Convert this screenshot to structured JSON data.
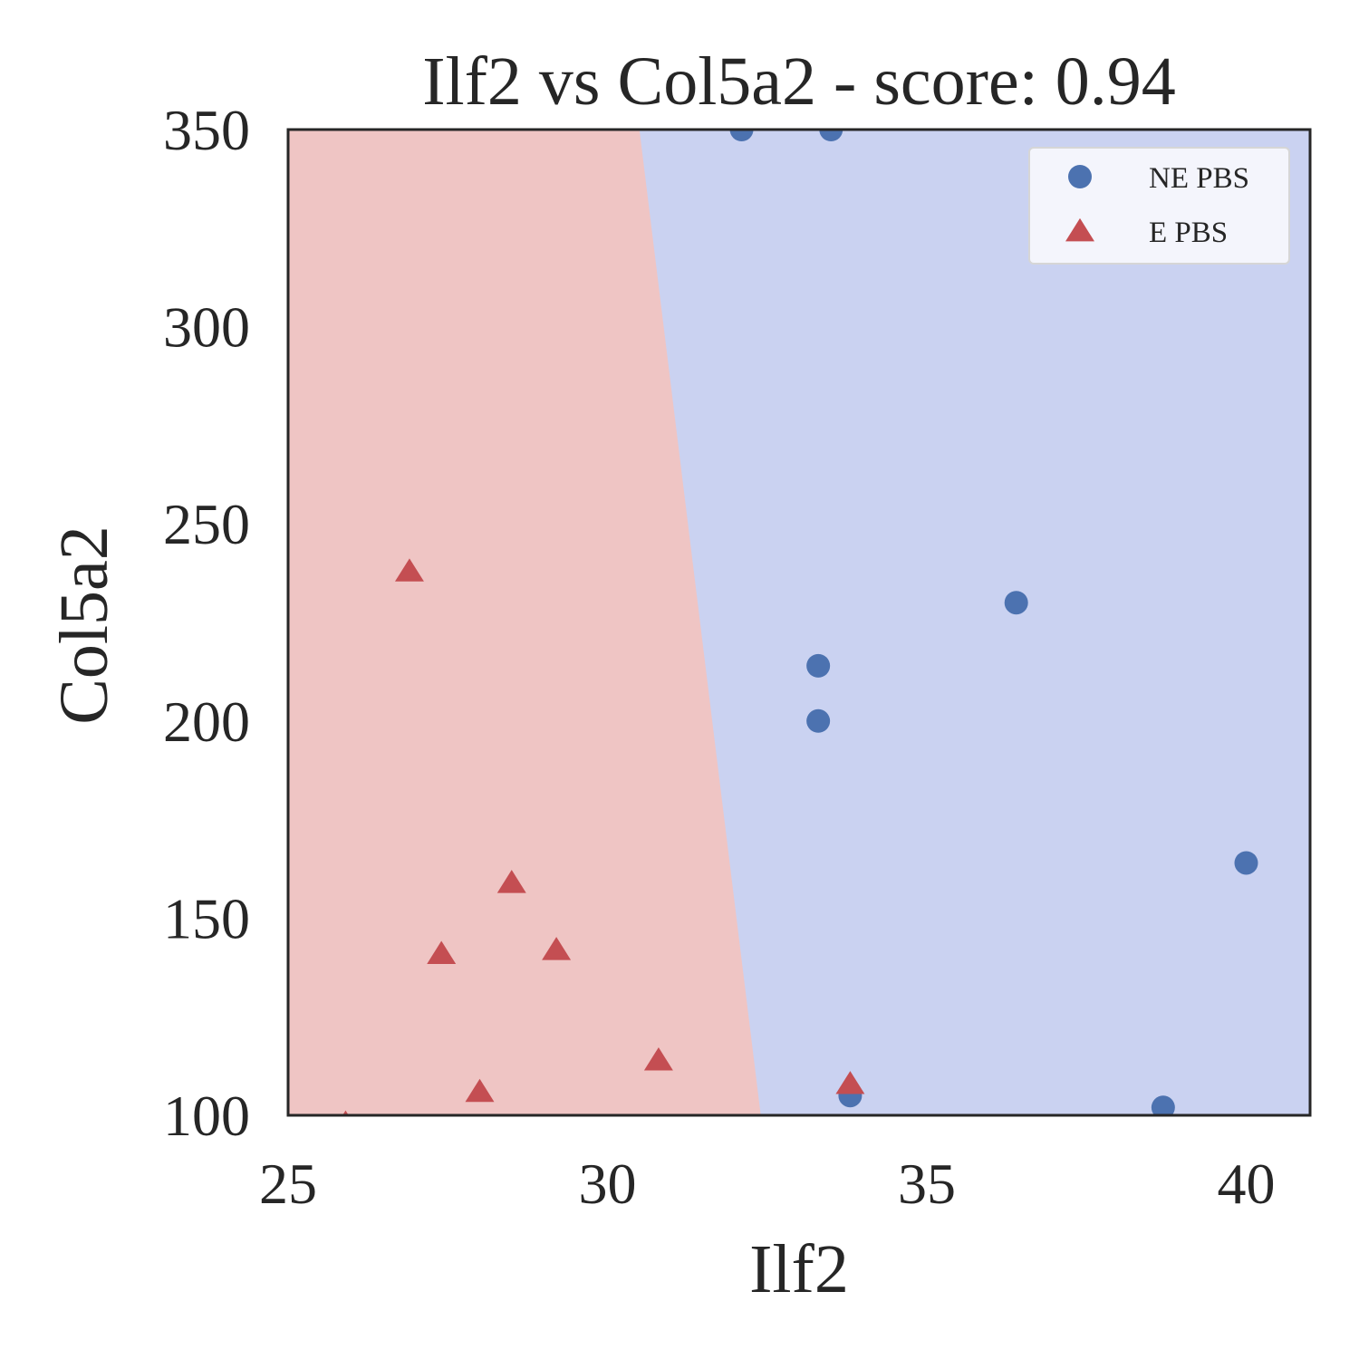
{
  "chart_data": {
    "type": "scatter",
    "title": "Ilf2 vs Col5a2 - score: 0.94",
    "xlabel": "Ilf2",
    "ylabel": "Col5a2",
    "xlim": [
      25,
      41
    ],
    "ylim": [
      100,
      350
    ],
    "xticks": [
      25,
      30,
      35,
      40
    ],
    "yticks": [
      100,
      150,
      200,
      250,
      300,
      350
    ],
    "grid": false,
    "legend_position": "top-right",
    "decision_boundary": {
      "left_region_class": "E PBS",
      "right_region_class": "NE PBS",
      "line": [
        [
          30.5,
          350
        ],
        [
          32.4,
          100
        ]
      ],
      "left_region_color": "#efc5c4",
      "right_region_color": "#cad2f1"
    },
    "series": [
      {
        "name": "NE PBS",
        "marker": "circle",
        "color": "#4c72b0",
        "points": [
          [
            32.1,
            350
          ],
          [
            33.5,
            350
          ],
          [
            36.4,
            230
          ],
          [
            33.3,
            214
          ],
          [
            33.3,
            200
          ],
          [
            40.0,
            164
          ],
          [
            33.8,
            105
          ],
          [
            38.7,
            102
          ]
        ]
      },
      {
        "name": "E PBS",
        "marker": "triangle",
        "color": "#c44e52",
        "points": [
          [
            26.9,
            238
          ],
          [
            28.5,
            159
          ],
          [
            27.4,
            141
          ],
          [
            29.2,
            142
          ],
          [
            30.8,
            114
          ],
          [
            28.0,
            106
          ],
          [
            33.8,
            108
          ],
          [
            25.9,
            98
          ]
        ]
      }
    ]
  }
}
